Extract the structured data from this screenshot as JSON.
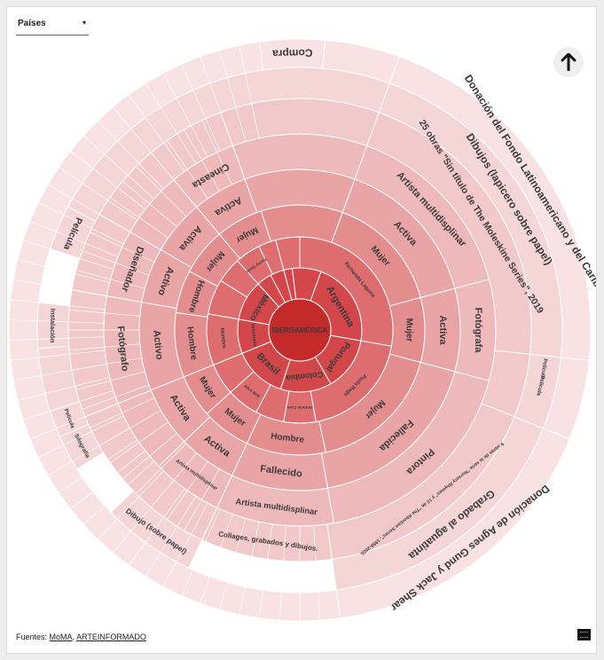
{
  "filter": {
    "label": "Países",
    "caret": "▾"
  },
  "footer": {
    "prefix": "Fuentes: ",
    "link1": "MoMA",
    "separator": ", ",
    "link2": "ARTEINFORMADO"
  },
  "icons": {
    "up": "arrow-up-icon",
    "logo": "embed-logo-icon"
  },
  "colors": {
    "ring0": "#c42a2a",
    "ring1": "#d3474a",
    "ring2": "#de6d6f",
    "ring3": "#e48d8e",
    "ring4": "#e9a5a6",
    "ring5": "#eeb9ba",
    "ring6": "#f2c9ca",
    "ring7": "#f5d6d7",
    "ring8": "#f8e2e3",
    "stroke": "#ffffff",
    "text": "#3a3a3a"
  },
  "chart_data": {
    "type": "sunburst",
    "root": "IBEROAMÉRICA",
    "rings": [
      {
        "level": "country",
        "segments": [
          {
            "label": "Argentina",
            "start": 20,
            "end": 100
          },
          {
            "label": "Portugal",
            "start": 100,
            "end": 150
          },
          {
            "label": "Colombia",
            "start": 150,
            "end": 198
          },
          {
            "label": "Brasil",
            "start": 198,
            "end": 248
          },
          {
            "label": "Venezuela",
            "start": 248,
            "end": 280
          },
          {
            "label": "México",
            "start": 280,
            "end": 318
          },
          {
            "label": "",
            "start": 318,
            "end": 332
          },
          {
            "label": "",
            "start": 332,
            "end": 345
          },
          {
            "label": "",
            "start": 345,
            "end": 353
          },
          {
            "label": "",
            "start": 353,
            "end": 380
          }
        ]
      },
      {
        "level": "artist",
        "segments": [
          {
            "label": "Fernanda Laguna",
            "start": 0,
            "end": 100
          },
          {
            "label": "Paula Rego",
            "start": 100,
            "end": 170
          },
          {
            "label": "Antonio Caro",
            "start": 170,
            "end": 190
          },
          {
            "label": "",
            "start": 190,
            "end": 208
          },
          {
            "label": "Alice Brill",
            "start": 208,
            "end": 228
          },
          {
            "label": "",
            "start": 228,
            "end": 248
          },
          {
            "label": "Hombre",
            "start": 248,
            "end": 280
          },
          {
            "label": "",
            "start": 280,
            "end": 302
          },
          {
            "label": "",
            "start": 302,
            "end": 318
          },
          {
            "label": "Fanny Sanín",
            "start": 318,
            "end": 334
          },
          {
            "label": "",
            "start": 334,
            "end": 345
          },
          {
            "label": "",
            "start": 345,
            "end": 360
          }
        ]
      },
      {
        "level": "gender",
        "segments": [
          {
            "label": "Mujer",
            "start": 20,
            "end": 75
          },
          {
            "label": "Mujer",
            "start": 75,
            "end": 105
          },
          {
            "label": "Mujer",
            "start": 105,
            "end": 168
          },
          {
            "label": "Hombre",
            "start": 168,
            "end": 205
          },
          {
            "label": "Mujer",
            "start": 205,
            "end": 228
          },
          {
            "label": "Mujer",
            "start": 228,
            "end": 248
          },
          {
            "label": "Hombre",
            "start": 248,
            "end": 278
          },
          {
            "label": "Hombre",
            "start": 278,
            "end": 298
          },
          {
            "label": "Mujer",
            "start": 298,
            "end": 320
          },
          {
            "label": "Mujer",
            "start": 320,
            "end": 342
          },
          {
            "label": "",
            "start": 342,
            "end": 380
          }
        ]
      },
      {
        "level": "status",
        "segments": [
          {
            "label": "Activa",
            "start": 20,
            "end": 75
          },
          {
            "label": "Activa",
            "start": 75,
            "end": 105
          },
          {
            "label": "Fallecida",
            "start": 105,
            "end": 170
          },
          {
            "label": "Fallecido",
            "start": 170,
            "end": 205
          },
          {
            "label": "Activa",
            "start": 205,
            "end": 226
          },
          {
            "label": "Activa",
            "start": 226,
            "end": 248
          },
          {
            "label": "Activo",
            "start": 248,
            "end": 280
          },
          {
            "label": "Activo",
            "start": 280,
            "end": 300
          },
          {
            "label": "Activa",
            "start": 300,
            "end": 320
          },
          {
            "label": "Activa",
            "start": 320,
            "end": 340
          },
          {
            "label": "",
            "start": 340,
            "end": 380
          }
        ]
      },
      {
        "level": "profession",
        "segments": [
          {
            "label": "Artista multidisplinar",
            "start": 20,
            "end": 75
          },
          {
            "label": "Fotógrafa",
            "start": 75,
            "end": 105
          },
          {
            "label": "Pintora",
            "start": 105,
            "end": 170
          },
          {
            "label": "Artista multidisplinar",
            "start": 170,
            "end": 205
          },
          {
            "label": "Artista multidisplinar",
            "start": 205,
            "end": 226
          },
          {
            "label": "",
            "start": 226,
            "end": 248
          },
          {
            "label": "Fotógrafo",
            "start": 248,
            "end": 280
          },
          {
            "label": "Diseñador",
            "start": 280,
            "end": 300
          },
          {
            "label": "",
            "start": 300,
            "end": 320
          },
          {
            "label": "Cineasta",
            "start": 320,
            "end": 340
          },
          {
            "label": "",
            "start": 340,
            "end": 380
          }
        ]
      },
      {
        "level": "work",
        "segments": [
          {
            "label": "25 obras \"Sin título de The Moleskine Series\", 2019",
            "start": 20,
            "end": 96
          },
          {
            "label": "",
            "start": 96,
            "end": 112
          },
          {
            "label": "9 obras de la serie \"Nursery Rhymes\" y 13 de \"The Abortion Series\", 1989-2005.",
            "start": 112,
            "end": 172
          },
          {
            "label": "Collages, grabados y dibujos.",
            "start": 172,
            "end": 205
          },
          {
            "label": "",
            "start": 205,
            "end": 248
          },
          {
            "label": "",
            "start": 248,
            "end": 280
          },
          {
            "label": "",
            "start": 280,
            "end": 300
          },
          {
            "label": "",
            "start": 300,
            "end": 340
          },
          {
            "label": "",
            "start": 340,
            "end": 380
          }
        ]
      },
      {
        "level": "medium",
        "segments": [
          {
            "label": "Dibujos (lapicero sobre papel)",
            "start": 20,
            "end": 96
          },
          {
            "label": "",
            "start": 96,
            "end": 112
          },
          {
            "label": "Grabado al aguatinta",
            "start": 112,
            "end": 172
          },
          {
            "label": "Dibujo (sobre papel)",
            "start": 205,
            "end": 226
          },
          {
            "label": "Silografía",
            "start": 238,
            "end": 246
          },
          {
            "label": "Película",
            "start": 246,
            "end": 252
          },
          {
            "label": "",
            "start": 252,
            "end": 266
          },
          {
            "label": "Instalación",
            "start": 266,
            "end": 276
          },
          {
            "label": "Película",
            "start": 288,
            "end": 298
          },
          {
            "label": "",
            "start": 298,
            "end": 380
          }
        ]
      },
      {
        "level": "acquisition",
        "segments": [
          {
            "label": "Donación del Fondo Latinoamericano y del Caribe",
            "start": 20,
            "end": 96
          },
          {
            "label": "",
            "start": 96,
            "end": 112
          },
          {
            "label": "Donación de Agnes Gund y Jack Shear",
            "start": 112,
            "end": 172
          },
          {
            "label": "",
            "start": 172,
            "end": 352
          },
          {
            "label": "Compra",
            "start": 352,
            "end": 365
          },
          {
            "label": "",
            "start": 365,
            "end": 380
          }
        ]
      }
    ],
    "outer_extra_labels": [
      {
        "label": "Película",
        "angle": 99
      },
      {
        "label": "Película",
        "angle": 103
      }
    ]
  }
}
